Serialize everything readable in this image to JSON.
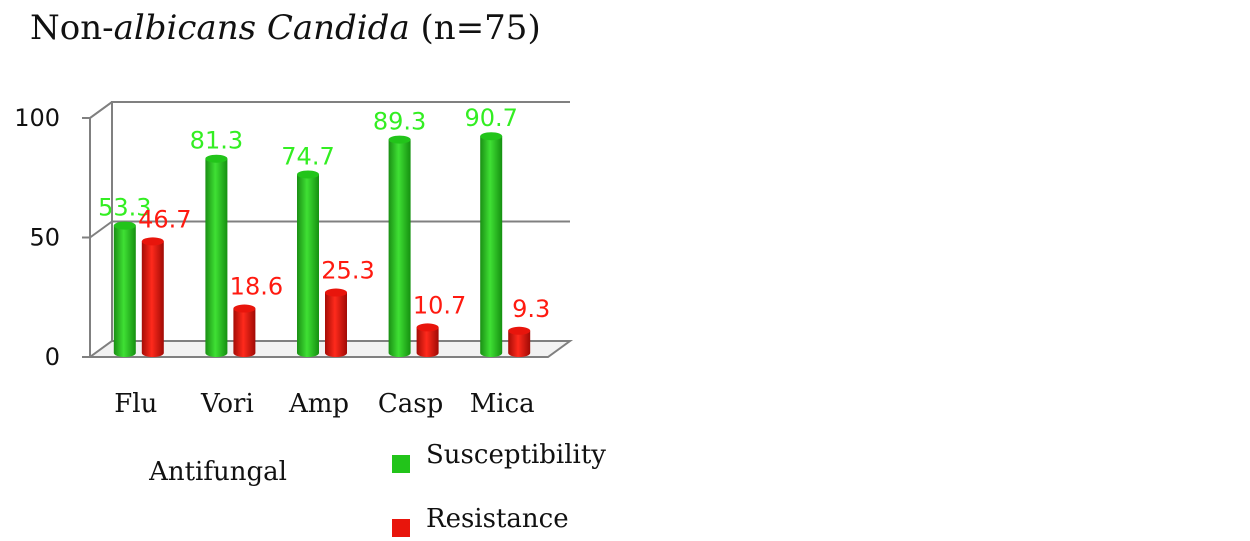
{
  "title": {
    "prefix": "Non-",
    "italic": "albicans Candida",
    "suffix": " (n=75)"
  },
  "chart_data": {
    "type": "bar",
    "categories": [
      "Flu",
      "Vori",
      "Amp",
      "Casp",
      "Mica"
    ],
    "series": [
      {
        "name": "Susceptibility",
        "values": [
          53.3,
          81.3,
          74.7,
          89.3,
          90.7
        ],
        "color": "#22c41a",
        "label_color": "#33ee22"
      },
      {
        "name": "Resistance",
        "values": [
          46.7,
          18.6,
          25.3,
          10.7,
          9.3
        ],
        "color": "#e8150c",
        "label_color": "#ff1a10"
      }
    ],
    "data_labels": [
      [
        "53.3",
        "81.3",
        "74.7",
        "89.3",
        "90.7"
      ],
      [
        "46.7",
        "18.6",
        "25.3",
        "10.7",
        "9.3"
      ]
    ],
    "yticks": [
      "0",
      "50",
      "100"
    ],
    "ylim": [
      0,
      100
    ],
    "xlabel": "Antifungal",
    "ylabel": "",
    "grid": true,
    "legend": "bottom-right"
  }
}
